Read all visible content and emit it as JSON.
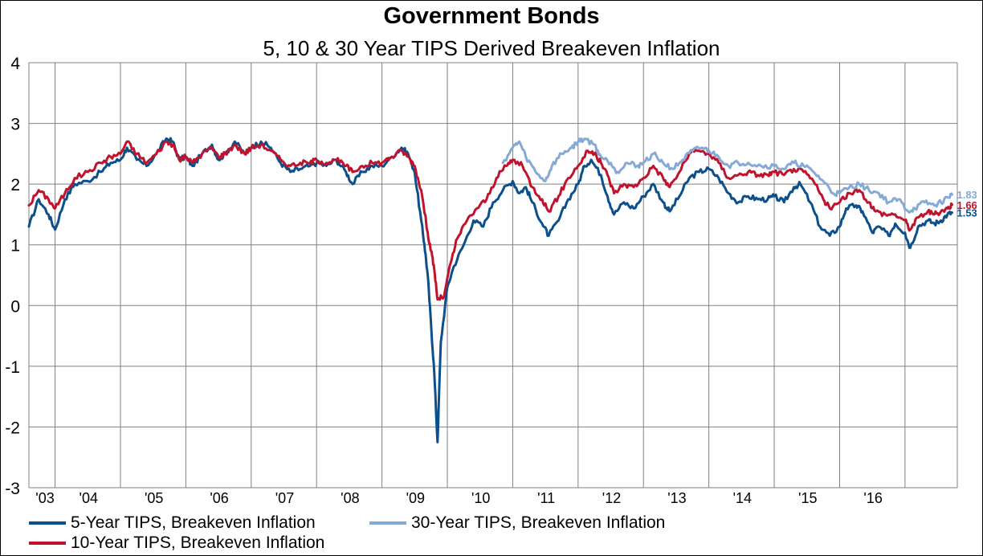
{
  "colors": {
    "series_5y": "#0b4f8c",
    "series_10y": "#c0142e",
    "series_30y": "#86a9d6",
    "grid": "#808080",
    "axis_text": "#000000"
  },
  "chart_data": {
    "type": "line",
    "title": "Government Bonds",
    "subtitle": "5, 10 & 30 Year TIPS Derived Breakeven Inflation",
    "xlabel": "",
    "ylabel": "",
    "ylim": [
      -3,
      4
    ],
    "yticks": [
      "4",
      "3",
      "2",
      "1",
      "0",
      "-1",
      "-2",
      "-3"
    ],
    "xlim": [
      2002.6,
      2016.8
    ],
    "xtick_labels": [
      "'03",
      "'04",
      "'05",
      "'06",
      "'07",
      "'08",
      "'09",
      "'10",
      "'11",
      "'12",
      "'13",
      "'14",
      "'15",
      "'16"
    ],
    "grid": true,
    "legend_placement": "bottom",
    "series": [
      {
        "name": "5-Year TIPS, Breakeven Inflation",
        "color_key": "series_5y",
        "end_label": "1.53",
        "points": [
          [
            2002.6,
            1.3
          ],
          [
            2002.75,
            1.75
          ],
          [
            2002.9,
            1.5
          ],
          [
            2003.0,
            1.25
          ],
          [
            2003.15,
            1.75
          ],
          [
            2003.3,
            2.0
          ],
          [
            2003.5,
            2.05
          ],
          [
            2003.7,
            2.2
          ],
          [
            2003.85,
            2.35
          ],
          [
            2004.0,
            2.4
          ],
          [
            2004.1,
            2.6
          ],
          [
            2004.25,
            2.4
          ],
          [
            2004.4,
            2.3
          ],
          [
            2004.55,
            2.5
          ],
          [
            2004.7,
            2.75
          ],
          [
            2004.8,
            2.7
          ],
          [
            2004.9,
            2.4
          ],
          [
            2005.0,
            2.45
          ],
          [
            2005.1,
            2.3
          ],
          [
            2005.25,
            2.5
          ],
          [
            2005.4,
            2.65
          ],
          [
            2005.5,
            2.4
          ],
          [
            2005.6,
            2.5
          ],
          [
            2005.75,
            2.7
          ],
          [
            2005.9,
            2.5
          ],
          [
            2006.0,
            2.6
          ],
          [
            2006.15,
            2.7
          ],
          [
            2006.3,
            2.6
          ],
          [
            2006.45,
            2.35
          ],
          [
            2006.6,
            2.2
          ],
          [
            2006.75,
            2.25
          ],
          [
            2006.9,
            2.3
          ],
          [
            2007.0,
            2.35
          ],
          [
            2007.15,
            2.3
          ],
          [
            2007.3,
            2.4
          ],
          [
            2007.45,
            2.2
          ],
          [
            2007.55,
            2.0
          ],
          [
            2007.7,
            2.2
          ],
          [
            2007.85,
            2.3
          ],
          [
            2008.0,
            2.3
          ],
          [
            2008.15,
            2.45
          ],
          [
            2008.3,
            2.6
          ],
          [
            2008.4,
            2.5
          ],
          [
            2008.5,
            2.2
          ],
          [
            2008.6,
            1.4
          ],
          [
            2008.65,
            1.0
          ],
          [
            2008.7,
            0.5
          ],
          [
            2008.75,
            -0.3
          ],
          [
            2008.8,
            -1.1
          ],
          [
            2008.85,
            -2.25
          ],
          [
            2008.9,
            -0.6
          ],
          [
            2009.0,
            0.3
          ],
          [
            2009.1,
            0.65
          ],
          [
            2009.25,
            1.0
          ],
          [
            2009.4,
            1.4
          ],
          [
            2009.55,
            1.3
          ],
          [
            2009.7,
            1.7
          ],
          [
            2009.85,
            1.9
          ],
          [
            2010.0,
            2.05
          ],
          [
            2010.1,
            1.85
          ],
          [
            2010.2,
            1.95
          ],
          [
            2010.3,
            1.7
          ],
          [
            2010.45,
            1.35
          ],
          [
            2010.55,
            1.15
          ],
          [
            2010.7,
            1.4
          ],
          [
            2010.85,
            1.75
          ],
          [
            2011.0,
            2.0
          ],
          [
            2011.1,
            2.3
          ],
          [
            2011.2,
            2.4
          ],
          [
            2011.35,
            2.15
          ],
          [
            2011.45,
            1.8
          ],
          [
            2011.55,
            1.5
          ],
          [
            2011.7,
            1.7
          ],
          [
            2011.85,
            1.6
          ],
          [
            2012.0,
            1.8
          ],
          [
            2012.15,
            2.0
          ],
          [
            2012.3,
            1.7
          ],
          [
            2012.4,
            1.55
          ],
          [
            2012.55,
            1.8
          ],
          [
            2012.7,
            2.1
          ],
          [
            2012.85,
            2.2
          ],
          [
            2013.0,
            2.25
          ],
          [
            2013.15,
            2.1
          ],
          [
            2013.3,
            1.85
          ],
          [
            2013.45,
            1.7
          ],
          [
            2013.6,
            1.8
          ],
          [
            2013.75,
            1.75
          ],
          [
            2013.9,
            1.75
          ],
          [
            2014.0,
            1.8
          ],
          [
            2014.15,
            1.7
          ],
          [
            2014.3,
            1.95
          ],
          [
            2014.4,
            2.0
          ],
          [
            2014.55,
            1.7
          ],
          [
            2014.7,
            1.3
          ],
          [
            2014.85,
            1.15
          ],
          [
            2015.0,
            1.3
          ],
          [
            2015.1,
            1.6
          ],
          [
            2015.25,
            1.65
          ],
          [
            2015.35,
            1.55
          ],
          [
            2015.5,
            1.2
          ],
          [
            2015.6,
            1.3
          ],
          [
            2015.75,
            1.15
          ],
          [
            2015.85,
            1.35
          ],
          [
            2016.0,
            1.2
          ],
          [
            2016.08,
            0.95
          ],
          [
            2016.2,
            1.3
          ],
          [
            2016.35,
            1.4
          ],
          [
            2016.45,
            1.35
          ],
          [
            2016.55,
            1.4
          ],
          [
            2016.65,
            1.5
          ],
          [
            2016.72,
            1.53
          ]
        ]
      },
      {
        "name": "30-Year TIPS, Breakeven Inflation",
        "color_key": "series_30y",
        "end_label": "1.83",
        "points": [
          [
            2009.85,
            2.35
          ],
          [
            2010.0,
            2.6
          ],
          [
            2010.1,
            2.7
          ],
          [
            2010.2,
            2.45
          ],
          [
            2010.35,
            2.2
          ],
          [
            2010.5,
            2.05
          ],
          [
            2010.6,
            2.3
          ],
          [
            2010.75,
            2.5
          ],
          [
            2010.9,
            2.6
          ],
          [
            2011.0,
            2.7
          ],
          [
            2011.1,
            2.75
          ],
          [
            2011.25,
            2.65
          ],
          [
            2011.35,
            2.45
          ],
          [
            2011.5,
            2.35
          ],
          [
            2011.6,
            2.2
          ],
          [
            2011.75,
            2.35
          ],
          [
            2011.9,
            2.3
          ],
          [
            2012.0,
            2.35
          ],
          [
            2012.15,
            2.5
          ],
          [
            2012.3,
            2.35
          ],
          [
            2012.45,
            2.25
          ],
          [
            2012.6,
            2.4
          ],
          [
            2012.75,
            2.55
          ],
          [
            2012.9,
            2.6
          ],
          [
            2013.0,
            2.55
          ],
          [
            2013.15,
            2.45
          ],
          [
            2013.3,
            2.3
          ],
          [
            2013.45,
            2.35
          ],
          [
            2013.6,
            2.35
          ],
          [
            2013.8,
            2.3
          ],
          [
            2014.0,
            2.3
          ],
          [
            2014.15,
            2.25
          ],
          [
            2014.3,
            2.35
          ],
          [
            2014.45,
            2.3
          ],
          [
            2014.6,
            2.2
          ],
          [
            2014.75,
            2.05
          ],
          [
            2014.9,
            1.85
          ],
          [
            2015.0,
            1.85
          ],
          [
            2015.15,
            1.95
          ],
          [
            2015.3,
            2.0
          ],
          [
            2015.45,
            1.9
          ],
          [
            2015.6,
            1.85
          ],
          [
            2015.75,
            1.7
          ],
          [
            2015.9,
            1.75
          ],
          [
            2016.05,
            1.55
          ],
          [
            2016.15,
            1.6
          ],
          [
            2016.3,
            1.7
          ],
          [
            2016.45,
            1.65
          ],
          [
            2016.55,
            1.7
          ],
          [
            2016.65,
            1.78
          ],
          [
            2016.72,
            1.83
          ]
        ]
      },
      {
        "name": "10-Year TIPS, Breakeven Inflation",
        "color_key": "series_10y",
        "end_label": "1.66",
        "points": [
          [
            2002.6,
            1.65
          ],
          [
            2002.75,
            1.9
          ],
          [
            2002.9,
            1.75
          ],
          [
            2003.0,
            1.6
          ],
          [
            2003.15,
            1.85
          ],
          [
            2003.3,
            2.1
          ],
          [
            2003.5,
            2.2
          ],
          [
            2003.7,
            2.35
          ],
          [
            2003.85,
            2.45
          ],
          [
            2004.0,
            2.5
          ],
          [
            2004.1,
            2.7
          ],
          [
            2004.25,
            2.5
          ],
          [
            2004.4,
            2.35
          ],
          [
            2004.55,
            2.5
          ],
          [
            2004.7,
            2.7
          ],
          [
            2004.8,
            2.65
          ],
          [
            2004.9,
            2.4
          ],
          [
            2005.0,
            2.45
          ],
          [
            2005.1,
            2.35
          ],
          [
            2005.25,
            2.5
          ],
          [
            2005.4,
            2.6
          ],
          [
            2005.5,
            2.45
          ],
          [
            2005.6,
            2.5
          ],
          [
            2005.75,
            2.65
          ],
          [
            2005.9,
            2.5
          ],
          [
            2006.0,
            2.6
          ],
          [
            2006.15,
            2.65
          ],
          [
            2006.3,
            2.55
          ],
          [
            2006.45,
            2.4
          ],
          [
            2006.6,
            2.3
          ],
          [
            2006.75,
            2.35
          ],
          [
            2006.9,
            2.35
          ],
          [
            2007.0,
            2.4
          ],
          [
            2007.15,
            2.35
          ],
          [
            2007.3,
            2.4
          ],
          [
            2007.45,
            2.3
          ],
          [
            2007.55,
            2.2
          ],
          [
            2007.7,
            2.3
          ],
          [
            2007.85,
            2.35
          ],
          [
            2008.0,
            2.35
          ],
          [
            2008.15,
            2.45
          ],
          [
            2008.3,
            2.55
          ],
          [
            2008.4,
            2.45
          ],
          [
            2008.5,
            2.3
          ],
          [
            2008.6,
            1.9
          ],
          [
            2008.7,
            1.2
          ],
          [
            2008.75,
            0.9
          ],
          [
            2008.8,
            0.6
          ],
          [
            2008.85,
            0.1
          ],
          [
            2008.95,
            0.15
          ],
          [
            2009.05,
            0.7
          ],
          [
            2009.15,
            1.1
          ],
          [
            2009.3,
            1.4
          ],
          [
            2009.45,
            1.6
          ],
          [
            2009.6,
            1.75
          ],
          [
            2009.75,
            2.1
          ],
          [
            2009.9,
            2.3
          ],
          [
            2010.0,
            2.4
          ],
          [
            2010.15,
            2.3
          ],
          [
            2010.3,
            1.95
          ],
          [
            2010.45,
            1.75
          ],
          [
            2010.55,
            1.55
          ],
          [
            2010.7,
            1.8
          ],
          [
            2010.85,
            2.1
          ],
          [
            2011.0,
            2.3
          ],
          [
            2011.15,
            2.55
          ],
          [
            2011.25,
            2.5
          ],
          [
            2011.35,
            2.35
          ],
          [
            2011.45,
            2.15
          ],
          [
            2011.55,
            1.85
          ],
          [
            2011.7,
            2.0
          ],
          [
            2011.85,
            1.95
          ],
          [
            2012.0,
            2.1
          ],
          [
            2012.15,
            2.3
          ],
          [
            2012.3,
            2.1
          ],
          [
            2012.4,
            1.95
          ],
          [
            2012.55,
            2.2
          ],
          [
            2012.7,
            2.5
          ],
          [
            2012.85,
            2.55
          ],
          [
            2013.0,
            2.5
          ],
          [
            2013.15,
            2.35
          ],
          [
            2013.3,
            2.1
          ],
          [
            2013.45,
            2.15
          ],
          [
            2013.6,
            2.2
          ],
          [
            2013.75,
            2.15
          ],
          [
            2013.9,
            2.15
          ],
          [
            2014.0,
            2.2
          ],
          [
            2014.15,
            2.15
          ],
          [
            2014.3,
            2.25
          ],
          [
            2014.45,
            2.2
          ],
          [
            2014.6,
            2.05
          ],
          [
            2014.75,
            1.75
          ],
          [
            2014.85,
            1.6
          ],
          [
            2015.0,
            1.7
          ],
          [
            2015.15,
            1.85
          ],
          [
            2015.3,
            1.9
          ],
          [
            2015.45,
            1.7
          ],
          [
            2015.55,
            1.55
          ],
          [
            2015.7,
            1.5
          ],
          [
            2015.85,
            1.5
          ],
          [
            2016.0,
            1.4
          ],
          [
            2016.08,
            1.25
          ],
          [
            2016.2,
            1.45
          ],
          [
            2016.35,
            1.55
          ],
          [
            2016.45,
            1.5
          ],
          [
            2016.55,
            1.55
          ],
          [
            2016.65,
            1.6
          ],
          [
            2016.72,
            1.66
          ]
        ]
      }
    ]
  }
}
